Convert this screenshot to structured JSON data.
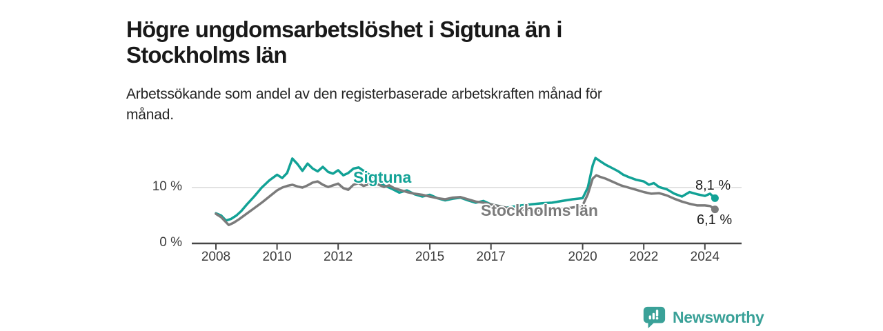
{
  "header": {
    "title_lines": [
      "Högre ungdomsarbetslöshet i Sigtuna än i",
      "Stockholms län"
    ],
    "subtitle_lines": [
      "Arbetssökande som andel av den registerbaserade arbetskraften månad för",
      "månad."
    ]
  },
  "chart_data": {
    "type": "line",
    "title": "Högre ungdomsarbetslöshet i Sigtuna än i Stockholms län",
    "subtitle": "Arbetssökande som andel av den registerbaserade arbetskraften månad för månad.",
    "xlabel": "",
    "ylabel": "",
    "xlim": [
      2007.25,
      2025.2
    ],
    "ylim": [
      0,
      16.5
    ],
    "grid": "horizontal gridline at 10% only",
    "legend_position": "inline-labels",
    "x_ticks": [
      {
        "value": 2008,
        "label": "2008"
      },
      {
        "value": 2010,
        "label": "2010"
      },
      {
        "value": 2012,
        "label": "2012"
      },
      {
        "value": 2015,
        "label": "2015"
      },
      {
        "value": 2017,
        "label": "2017"
      },
      {
        "value": 2020,
        "label": "2020"
      },
      {
        "value": 2022,
        "label": "2022"
      },
      {
        "value": 2024,
        "label": "2024"
      }
    ],
    "y_ticks": [
      {
        "value": 0,
        "label": "0 %"
      },
      {
        "value": 10,
        "label": "10 %"
      }
    ],
    "series": [
      {
        "name": "Sigtuna",
        "color": "#12a296",
        "end_label": "8,1 %",
        "end_value": 8.1,
        "points": [
          [
            2008.0,
            5.4
          ],
          [
            2008.17,
            5.0
          ],
          [
            2008.33,
            4.1
          ],
          [
            2008.5,
            4.4
          ],
          [
            2008.67,
            5.0
          ],
          [
            2008.83,
            5.8
          ],
          [
            2009.0,
            6.9
          ],
          [
            2009.25,
            8.4
          ],
          [
            2009.5,
            10.0
          ],
          [
            2009.75,
            11.3
          ],
          [
            2010.0,
            12.3
          ],
          [
            2010.17,
            11.7
          ],
          [
            2010.33,
            12.6
          ],
          [
            2010.5,
            15.2
          ],
          [
            2010.67,
            14.2
          ],
          [
            2010.83,
            13.0
          ],
          [
            2011.0,
            14.3
          ],
          [
            2011.17,
            13.4
          ],
          [
            2011.33,
            12.9
          ],
          [
            2011.5,
            13.7
          ],
          [
            2011.67,
            12.8
          ],
          [
            2011.83,
            12.5
          ],
          [
            2012.0,
            13.1
          ],
          [
            2012.17,
            12.2
          ],
          [
            2012.33,
            12.6
          ],
          [
            2012.5,
            13.4
          ],
          [
            2012.67,
            13.6
          ],
          [
            2012.83,
            13.0
          ],
          [
            2013.0,
            12.4
          ],
          [
            2013.25,
            11.6
          ],
          [
            2013.5,
            10.4
          ],
          [
            2013.75,
            9.8
          ],
          [
            2014.0,
            9.1
          ],
          [
            2014.25,
            9.5
          ],
          [
            2014.5,
            8.8
          ],
          [
            2014.75,
            8.4
          ],
          [
            2015.0,
            8.7
          ],
          [
            2015.25,
            8.1
          ],
          [
            2015.5,
            7.7
          ],
          [
            2015.75,
            8.0
          ],
          [
            2016.0,
            8.2
          ],
          [
            2016.25,
            7.7
          ],
          [
            2016.5,
            7.3
          ],
          [
            2016.75,
            7.6
          ],
          [
            2017.0,
            7.0
          ],
          [
            2017.25,
            6.7
          ],
          [
            2017.5,
            6.4
          ],
          [
            2017.75,
            6.6
          ],
          [
            2018.0,
            6.8
          ],
          [
            2018.33,
            7.0
          ],
          [
            2018.67,
            7.2
          ],
          [
            2019.0,
            7.3
          ],
          [
            2019.33,
            7.6
          ],
          [
            2019.67,
            7.9
          ],
          [
            2020.0,
            8.1
          ],
          [
            2020.17,
            10.0
          ],
          [
            2020.33,
            14.0
          ],
          [
            2020.42,
            15.3
          ],
          [
            2020.58,
            14.7
          ],
          [
            2020.75,
            14.1
          ],
          [
            2021.0,
            13.4
          ],
          [
            2021.17,
            12.9
          ],
          [
            2021.33,
            12.3
          ],
          [
            2021.5,
            11.9
          ],
          [
            2021.75,
            11.4
          ],
          [
            2022.0,
            11.1
          ],
          [
            2022.17,
            10.5
          ],
          [
            2022.33,
            10.8
          ],
          [
            2022.5,
            10.1
          ],
          [
            2022.75,
            9.7
          ],
          [
            2023.0,
            8.9
          ],
          [
            2023.25,
            8.4
          ],
          [
            2023.5,
            9.2
          ],
          [
            2023.75,
            8.8
          ],
          [
            2024.0,
            8.5
          ],
          [
            2024.17,
            8.9
          ],
          [
            2024.33,
            8.1
          ]
        ]
      },
      {
        "name": "Stockholms län",
        "color": "#7b7b7b",
        "end_label": "6,1 %",
        "end_value": 6.1,
        "points": [
          [
            2008.0,
            5.3
          ],
          [
            2008.17,
            4.7
          ],
          [
            2008.33,
            3.8
          ],
          [
            2008.42,
            3.3
          ],
          [
            2008.58,
            3.7
          ],
          [
            2008.75,
            4.3
          ],
          [
            2009.0,
            5.3
          ],
          [
            2009.25,
            6.3
          ],
          [
            2009.5,
            7.3
          ],
          [
            2009.75,
            8.4
          ],
          [
            2010.0,
            9.5
          ],
          [
            2010.17,
            10.0
          ],
          [
            2010.33,
            10.3
          ],
          [
            2010.5,
            10.5
          ],
          [
            2010.67,
            10.2
          ],
          [
            2010.83,
            10.0
          ],
          [
            2011.0,
            10.4
          ],
          [
            2011.17,
            10.9
          ],
          [
            2011.33,
            11.1
          ],
          [
            2011.5,
            10.5
          ],
          [
            2011.67,
            10.1
          ],
          [
            2011.83,
            10.4
          ],
          [
            2012.0,
            10.7
          ],
          [
            2012.17,
            9.9
          ],
          [
            2012.33,
            9.6
          ],
          [
            2012.5,
            10.5
          ],
          [
            2012.67,
            10.8
          ],
          [
            2012.83,
            10.3
          ],
          [
            2013.0,
            10.6
          ],
          [
            2013.17,
            10.9
          ],
          [
            2013.33,
            10.5
          ],
          [
            2013.5,
            10.1
          ],
          [
            2013.67,
            10.4
          ],
          [
            2013.83,
            9.9
          ],
          [
            2014.0,
            9.6
          ],
          [
            2014.25,
            9.2
          ],
          [
            2014.5,
            8.9
          ],
          [
            2014.75,
            8.7
          ],
          [
            2015.0,
            8.4
          ],
          [
            2015.25,
            8.1
          ],
          [
            2015.5,
            7.9
          ],
          [
            2015.75,
            8.2
          ],
          [
            2016.0,
            8.3
          ],
          [
            2016.25,
            7.9
          ],
          [
            2016.5,
            7.5
          ],
          [
            2016.75,
            7.3
          ],
          [
            2017.0,
            7.0
          ],
          [
            2017.25,
            6.7
          ],
          [
            2017.5,
            6.4
          ],
          [
            2017.75,
            6.2
          ],
          [
            2018.0,
            6.1
          ],
          [
            2018.5,
            5.9
          ],
          [
            2019.0,
            6.0
          ],
          [
            2019.5,
            6.3
          ],
          [
            2019.75,
            6.5
          ],
          [
            2020.0,
            6.8
          ],
          [
            2020.17,
            8.8
          ],
          [
            2020.33,
            11.6
          ],
          [
            2020.45,
            12.2
          ],
          [
            2020.58,
            11.9
          ],
          [
            2020.75,
            11.6
          ],
          [
            2021.0,
            11.0
          ],
          [
            2021.25,
            10.4
          ],
          [
            2021.5,
            10.0
          ],
          [
            2021.75,
            9.6
          ],
          [
            2022.0,
            9.2
          ],
          [
            2022.25,
            8.9
          ],
          [
            2022.5,
            9.0
          ],
          [
            2022.75,
            8.6
          ],
          [
            2023.0,
            8.0
          ],
          [
            2023.25,
            7.5
          ],
          [
            2023.5,
            7.1
          ],
          [
            2023.75,
            6.8
          ],
          [
            2024.0,
            6.8
          ],
          [
            2024.17,
            6.7
          ],
          [
            2024.33,
            6.1
          ]
        ]
      }
    ]
  },
  "colors": {
    "accent_teal": "#12a296",
    "series_gray": "#7b7b7b",
    "gridline": "#d8d8d8",
    "axis": "#454545",
    "brand_teal": "#3aa198"
  },
  "footer": {
    "brand": "Newsworthy",
    "brand_icon": "bar-chart-speech-bubble-icon"
  }
}
